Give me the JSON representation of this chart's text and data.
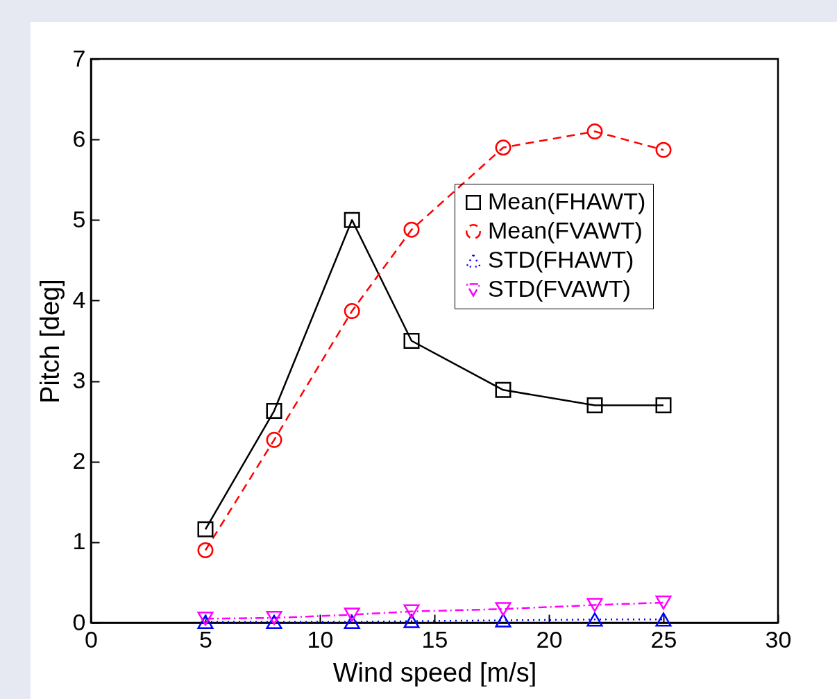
{
  "chart_data": {
    "type": "line",
    "xlabel": "Wind speed [m/s]",
    "ylabel": "Pitch [deg]",
    "xlim": [
      0,
      30
    ],
    "xticks": [
      0,
      5,
      10,
      15,
      20,
      25,
      30
    ],
    "ylim": [
      0,
      7
    ],
    "yticks": [
      0,
      1,
      2,
      3,
      4,
      5,
      6,
      7
    ],
    "x": [
      5,
      8,
      11.4,
      14,
      18,
      22,
      25
    ],
    "grid": false,
    "legend": "top right",
    "series": [
      {
        "name": "Mean(FHAWT)",
        "color": "#000000",
        "marker": "square",
        "line_style": "solid",
        "values": [
          1.16,
          2.63,
          5.0,
          3.5,
          2.89,
          2.7,
          2.7
        ]
      },
      {
        "name": "Mean(FVAWT)",
        "color": "#ff0000",
        "marker": "circle",
        "line_style": "dashed",
        "values": [
          0.9,
          2.27,
          3.87,
          4.88,
          5.9,
          6.1,
          5.87
        ]
      },
      {
        "name": "STD(FHAWT)",
        "color": "#0000ff",
        "marker": "triangle",
        "line_style": "dotted",
        "values": [
          0.01,
          0.01,
          0.01,
          0.02,
          0.03,
          0.04,
          0.04
        ]
      },
      {
        "name": "STD(FVAWT)",
        "color": "#ff00ff",
        "marker": "triangle-down",
        "line_style": "dashdot",
        "values": [
          0.05,
          0.06,
          0.1,
          0.14,
          0.17,
          0.22,
          0.25
        ]
      }
    ]
  }
}
